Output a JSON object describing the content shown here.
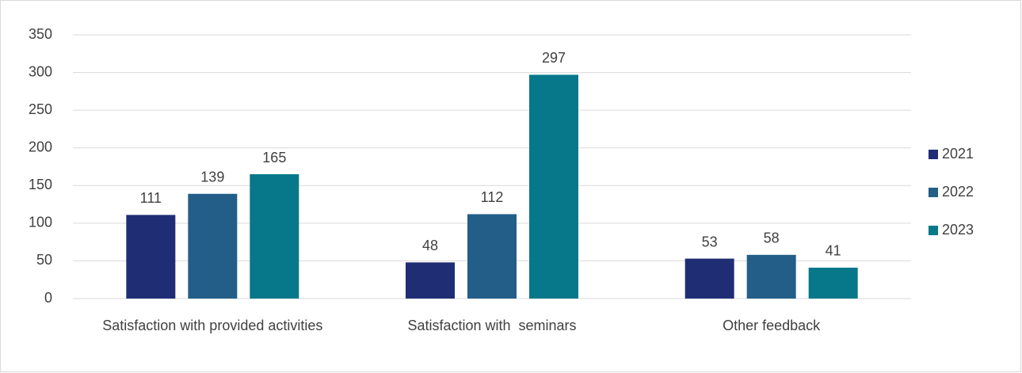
{
  "chart_data": {
    "type": "bar",
    "categories": [
      "Satisfaction with provided activities",
      "Satisfaction with  seminars",
      "Other feedback"
    ],
    "series": [
      {
        "name": "2021",
        "color": "#1f2e74",
        "values": [
          111,
          48,
          53
        ]
      },
      {
        "name": "2022",
        "color": "#235e88",
        "values": [
          139,
          112,
          58
        ]
      },
      {
        "name": "2023",
        "color": "#06788a",
        "values": [
          165,
          297,
          41
        ]
      }
    ],
    "ylim": [
      0,
      350
    ],
    "yticks": [
      0,
      50,
      100,
      150,
      200,
      250,
      300,
      350
    ],
    "grid": true,
    "legend": "right"
  }
}
